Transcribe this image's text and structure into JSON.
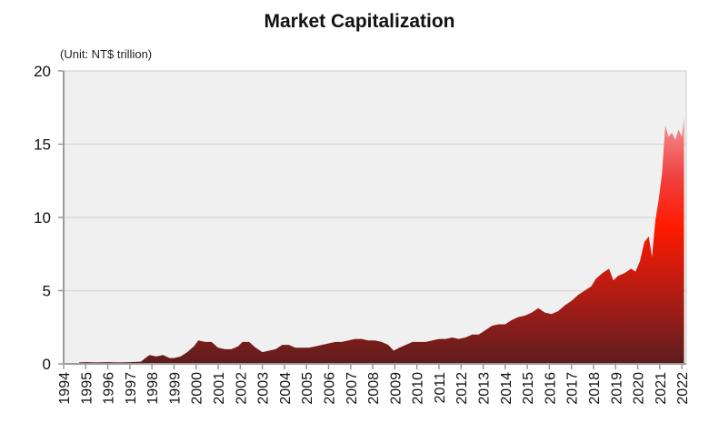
{
  "chart_data": {
    "type": "area",
    "title": "Market Capitalization",
    "unit_note": "(Unit: NT$  trillion)",
    "xlabel": "",
    "ylabel": "",
    "xlim": [
      1994,
      2022.2
    ],
    "ylim": [
      0,
      20
    ],
    "grid": true,
    "y_ticks": [
      "0",
      "5",
      "10",
      "15",
      "20"
    ],
    "y_tick_values": [
      0,
      5,
      10,
      15,
      20
    ],
    "x_ticks": [
      "1994",
      "1995",
      "1996",
      "1997",
      "1998",
      "1999",
      "2000",
      "2001",
      "2002",
      "2003",
      "2004",
      "2005",
      "2006",
      "2007",
      "2008",
      "2009",
      "2010",
      "2011",
      "2012",
      "2013",
      "2014",
      "2015",
      "2016",
      "2017",
      "2018",
      "2019",
      "2020",
      "2021",
      "2022"
    ],
    "series": [
      {
        "name": "Market Capitalization",
        "x": [
          1994.7,
          1995.0,
          1995.5,
          1996.0,
          1996.5,
          1997.0,
          1997.5,
          1997.7,
          1997.9,
          1998.2,
          1998.5,
          1998.8,
          1999.0,
          1999.3,
          1999.6,
          1999.9,
          2000.1,
          2000.4,
          2000.7,
          2001.0,
          2001.3,
          2001.6,
          2001.9,
          2002.1,
          2002.4,
          2002.7,
          2003.0,
          2003.3,
          2003.6,
          2003.9,
          2004.2,
          2004.5,
          2004.8,
          2005.1,
          2005.4,
          2005.7,
          2006.0,
          2006.3,
          2006.6,
          2006.9,
          2007.2,
          2007.5,
          2007.8,
          2008.1,
          2008.4,
          2008.7,
          2008.95,
          2009.2,
          2009.5,
          2009.8,
          2010.1,
          2010.4,
          2010.7,
          2011.0,
          2011.3,
          2011.6,
          2011.9,
          2012.2,
          2012.5,
          2012.8,
          2013.1,
          2013.4,
          2013.7,
          2014.0,
          2014.3,
          2014.6,
          2014.9,
          2015.2,
          2015.5,
          2015.8,
          2016.1,
          2016.4,
          2016.7,
          2017.0,
          2017.3,
          2017.6,
          2017.9,
          2018.1,
          2018.4,
          2018.7,
          2018.9,
          2019.1,
          2019.4,
          2019.7,
          2019.9,
          2020.1,
          2020.3,
          2020.5,
          2020.65,
          2020.8,
          2020.95,
          2021.1,
          2021.25,
          2021.4,
          2021.55,
          2021.7,
          2021.85,
          2022.0,
          2022.1
        ],
        "values": [
          0.1,
          0.12,
          0.1,
          0.12,
          0.1,
          0.12,
          0.15,
          0.4,
          0.6,
          0.5,
          0.6,
          0.4,
          0.4,
          0.5,
          0.8,
          1.2,
          1.6,
          1.5,
          1.5,
          1.1,
          1.0,
          1.0,
          1.2,
          1.5,
          1.5,
          1.1,
          0.8,
          0.9,
          1.0,
          1.3,
          1.3,
          1.1,
          1.1,
          1.1,
          1.2,
          1.3,
          1.4,
          1.5,
          1.5,
          1.6,
          1.7,
          1.7,
          1.6,
          1.6,
          1.5,
          1.3,
          0.9,
          1.1,
          1.3,
          1.5,
          1.5,
          1.5,
          1.6,
          1.7,
          1.7,
          1.8,
          1.7,
          1.8,
          2.0,
          2.0,
          2.3,
          2.6,
          2.7,
          2.7,
          3.0,
          3.2,
          3.3,
          3.5,
          3.8,
          3.5,
          3.4,
          3.6,
          4.0,
          4.3,
          4.7,
          5.0,
          5.3,
          5.8,
          6.2,
          6.5,
          5.7,
          6.0,
          6.2,
          6.5,
          6.3,
          7.0,
          8.3,
          8.7,
          7.3,
          9.8,
          11.2,
          13.0,
          16.3,
          15.5,
          15.8,
          15.3,
          16.0,
          15.5,
          16.8
        ]
      }
    ],
    "colors": {
      "plot_background": "#f0f0f0",
      "grid": "#d9d9d9",
      "axis": "#9a9a9a",
      "fill_low_dark": "#5c1d1d",
      "fill_mid": "#a01c18",
      "fill_high_red": "#ff1a00",
      "fill_top_pink": "#f29a9a"
    }
  }
}
